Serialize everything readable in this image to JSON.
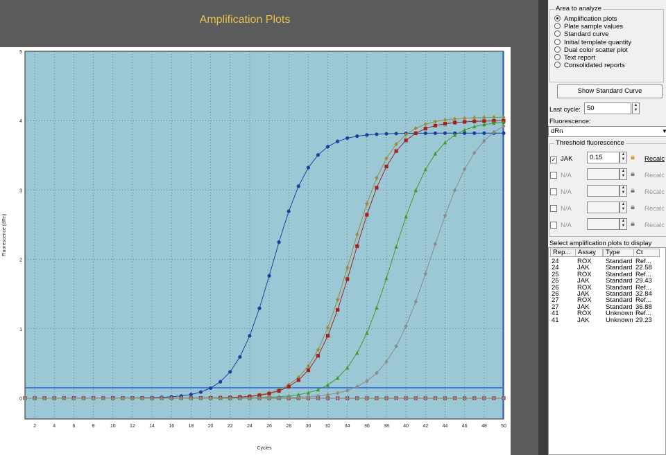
{
  "chart_title": "Amplification Plots",
  "chart_data": {
    "type": "line",
    "title": "Amplification Plots",
    "xlabel": "Cycles",
    "ylabel": "Fluorescence (dRn)",
    "xlim": [
      1,
      50
    ],
    "ylim": [
      -0.3,
      5
    ],
    "x_ticks": [
      2,
      4,
      6,
      8,
      10,
      12,
      14,
      16,
      18,
      20,
      22,
      24,
      26,
      28,
      30,
      32,
      34,
      36,
      38,
      40,
      42,
      44,
      46,
      48,
      50
    ],
    "y_ticks": [
      0,
      1,
      2,
      3,
      4,
      5
    ],
    "threshold": 0.15,
    "grid": true,
    "series": [
      {
        "color": "#1f3f9c",
        "marker": "circle",
        "midpoint": 26.3,
        "slope": 1.95,
        "plateau": 3.82
      },
      {
        "color": "#9a8a3a",
        "marker": "diamond",
        "midpoint": 34.3,
        "slope": 2.1,
        "plateau": 4.05
      },
      {
        "color": "#a0231f",
        "marker": "square",
        "midpoint": 34.6,
        "slope": 2.1,
        "plateau": 4.0
      },
      {
        "color": "#3f9a2a",
        "marker": "triangle",
        "midpoint": 38.6,
        "slope": 2.2,
        "plateau": 4.0
      },
      {
        "color": "#8a8a8a",
        "marker": "diamond",
        "midpoint": 42.6,
        "slope": 2.4,
        "plateau": 4.1
      }
    ],
    "baseline_markers": [
      {
        "color": "#1f3f9c",
        "marker": "circle"
      },
      {
        "color": "#a0231f",
        "marker": "square"
      },
      {
        "color": "#8a8a8a",
        "marker": "diamond"
      }
    ]
  },
  "panel": {
    "area_title": "Area to analyze",
    "options": [
      {
        "label": "Amplification plots",
        "selected": true
      },
      {
        "label": "Plate sample values",
        "selected": false
      },
      {
        "label": "Standard curve",
        "selected": false
      },
      {
        "label": "Initial template quantity",
        "selected": false
      },
      {
        "label": "Dual color scatter plot",
        "selected": false
      },
      {
        "label": "Text report",
        "selected": false
      },
      {
        "label": "Consolidated reports",
        "selected": false
      }
    ],
    "show_std_curve": "Show Standard Curve",
    "last_cycle_label": "Last cycle:",
    "last_cycle_value": "50",
    "fluorescence_label": "Fluorescence:",
    "fluorescence_value": "dRn",
    "threshold_title": "Threshold fluorescence",
    "thresholds": [
      {
        "name": "JAK",
        "value": "0.15",
        "checked": true,
        "enabled": true,
        "recalc": "Recalc"
      },
      {
        "name": "N/A",
        "value": "",
        "checked": false,
        "enabled": false,
        "recalc": "Recalc"
      },
      {
        "name": "N/A",
        "value": "",
        "checked": false,
        "enabled": false,
        "recalc": "Recalc"
      },
      {
        "name": "N/A",
        "value": "",
        "checked": false,
        "enabled": false,
        "recalc": "Recalc"
      },
      {
        "name": "N/A",
        "value": "",
        "checked": false,
        "enabled": false,
        "recalc": "Recalc"
      }
    ],
    "select_label": "Select amplification plots to display",
    "table_headers": [
      "Rep...",
      "Assay",
      "Type",
      "Ct"
    ],
    "rows": [
      [
        "24",
        "ROX",
        "Standard",
        "Ref..."
      ],
      [
        "24",
        "JAK",
        "Standard",
        "22.58"
      ],
      [
        "25",
        "ROX",
        "Standard",
        "Ref..."
      ],
      [
        "25",
        "JAK",
        "Standard",
        "29.43"
      ],
      [
        "26",
        "ROX",
        "Standard",
        "Ref..."
      ],
      [
        "26",
        "JAK",
        "Standard",
        "32.84"
      ],
      [
        "27",
        "ROX",
        "Standard",
        "Ref..."
      ],
      [
        "27",
        "JAK",
        "Standard",
        "36.88"
      ],
      [
        "41",
        "ROX",
        "Unknown",
        "Ref..."
      ],
      [
        "41",
        "JAK",
        "Unknown",
        "29.23"
      ]
    ]
  }
}
